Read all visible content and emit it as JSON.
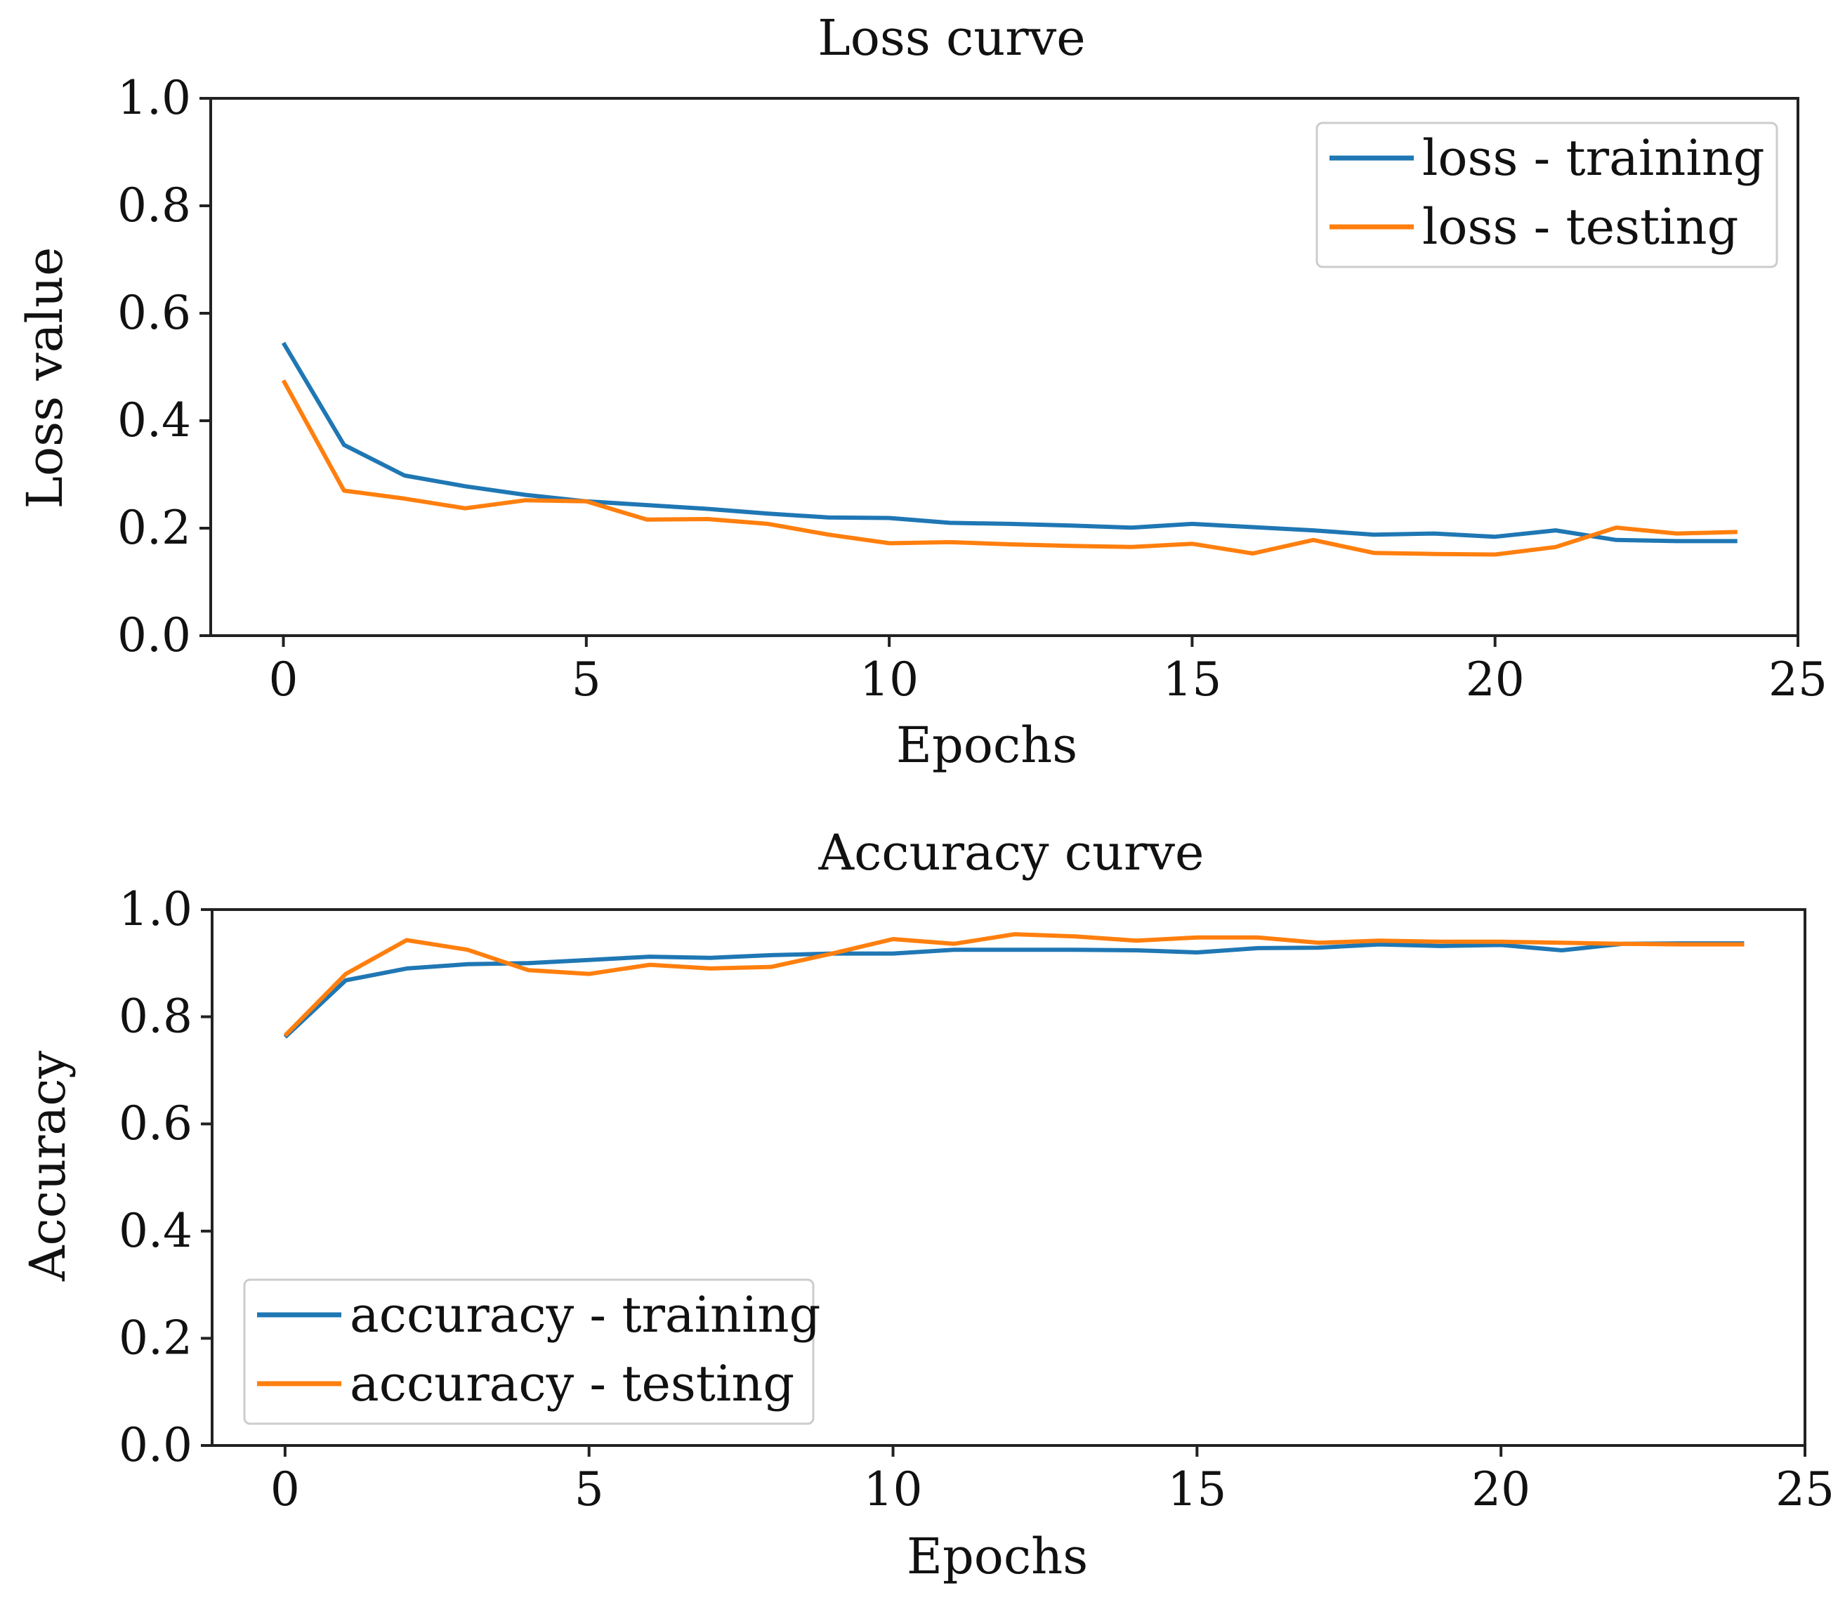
{
  "chart_data": [
    {
      "type": "line",
      "title": "Loss curve",
      "xlabel": "Epochs",
      "ylabel": "Loss value",
      "xlim": [
        -1.2,
        25
      ],
      "ylim": [
        0,
        1.0
      ],
      "xticks": [
        0,
        5,
        10,
        15,
        20,
        25
      ],
      "yticks": [
        0.0,
        0.2,
        0.4,
        0.6,
        0.8,
        1.0
      ],
      "xtick_labels": [
        "0",
        "5",
        "10",
        "15",
        "20",
        "25"
      ],
      "ytick_labels": [
        "0.0",
        "0.2",
        "0.4",
        "0.6",
        "0.8",
        "1.0"
      ],
      "legend_position": "top-right",
      "x": [
        0,
        1,
        2,
        3,
        4,
        5,
        6,
        7,
        8,
        9,
        10,
        11,
        12,
        13,
        14,
        15,
        16,
        17,
        18,
        19,
        20,
        21,
        22,
        23,
        24
      ],
      "series": [
        {
          "name": "loss - training",
          "color": "#1f77b4",
          "values": [
            0.545,
            0.355,
            0.298,
            0.278,
            0.262,
            0.25,
            0.243,
            0.236,
            0.227,
            0.22,
            0.219,
            0.21,
            0.208,
            0.205,
            0.201,
            0.208,
            0.202,
            0.196,
            0.188,
            0.19,
            0.184,
            0.196,
            0.178,
            0.176,
            0.176
          ]
        },
        {
          "name": "loss - testing",
          "color": "#ff7f0e",
          "values": [
            0.475,
            0.27,
            0.255,
            0.237,
            0.252,
            0.25,
            0.216,
            0.217,
            0.208,
            0.188,
            0.172,
            0.174,
            0.17,
            0.167,
            0.165,
            0.171,
            0.153,
            0.178,
            0.154,
            0.152,
            0.151,
            0.165,
            0.201,
            0.19,
            0.193
          ]
        }
      ]
    },
    {
      "type": "line",
      "title": "Accuracy curve",
      "xlabel": "Epochs",
      "ylabel": "Accuracy",
      "xlim": [
        -1.2,
        25
      ],
      "ylim": [
        0,
        1.0
      ],
      "xticks": [
        0,
        5,
        10,
        15,
        20,
        25
      ],
      "yticks": [
        0.0,
        0.2,
        0.4,
        0.6,
        0.8,
        1.0
      ],
      "xtick_labels": [
        "0",
        "5",
        "10",
        "15",
        "20",
        "25"
      ],
      "ytick_labels": [
        "0.0",
        "0.2",
        "0.4",
        "0.6",
        "0.8",
        "1.0"
      ],
      "legend_position": "lower-left",
      "x": [
        0,
        1,
        2,
        3,
        4,
        5,
        6,
        7,
        8,
        9,
        10,
        11,
        12,
        13,
        14,
        15,
        16,
        17,
        18,
        19,
        20,
        21,
        22,
        23,
        24
      ],
      "series": [
        {
          "name": "accuracy - training",
          "color": "#1f77b4",
          "values": [
            0.762,
            0.868,
            0.89,
            0.898,
            0.9,
            0.906,
            0.912,
            0.91,
            0.915,
            0.918,
            0.918,
            0.925,
            0.925,
            0.925,
            0.924,
            0.92,
            0.928,
            0.929,
            0.935,
            0.932,
            0.934,
            0.924,
            0.936,
            0.937,
            0.937
          ]
        },
        {
          "name": "accuracy - testing",
          "color": "#ff7f0e",
          "values": [
            0.765,
            0.88,
            0.943,
            0.925,
            0.887,
            0.88,
            0.897,
            0.89,
            0.893,
            0.918,
            0.945,
            0.936,
            0.954,
            0.95,
            0.942,
            0.948,
            0.948,
            0.938,
            0.942,
            0.94,
            0.94,
            0.938,
            0.936,
            0.935,
            0.935
          ]
        }
      ]
    }
  ]
}
